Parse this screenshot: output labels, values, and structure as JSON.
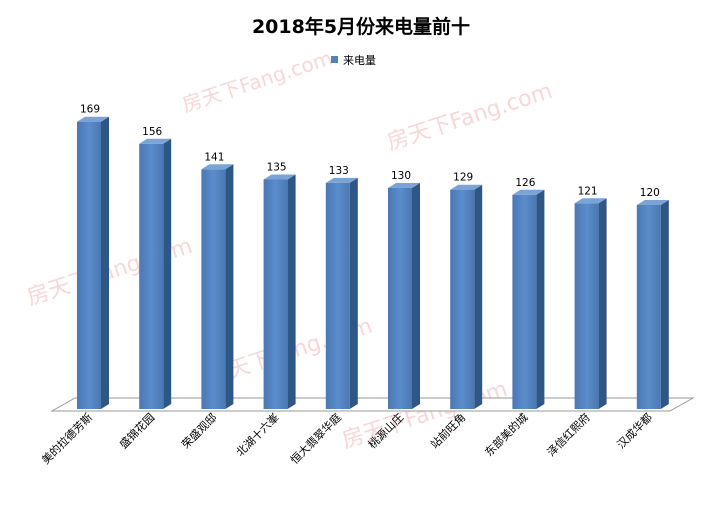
{
  "chart_data": {
    "type": "bar",
    "title": "2018年5月份来电量前十",
    "legend": "top",
    "series": [
      {
        "name": "来电量",
        "color": "#4f81bd",
        "values": [
          169,
          156,
          141,
          135,
          133,
          130,
          129,
          126,
          121,
          120
        ]
      }
    ],
    "categories": [
      "美的拉德芳斯",
      "盛锦花园",
      "荣盛观邸",
      "北湖十六峯",
      "恒大翡翠华庭",
      "桃源山庄",
      "站前旺角",
      "东部美的城",
      "泽信红熙府",
      "汉成华都"
    ],
    "ylim": [
      0,
      180
    ],
    "grid": false
  },
  "watermark": "房天下Fang.com"
}
